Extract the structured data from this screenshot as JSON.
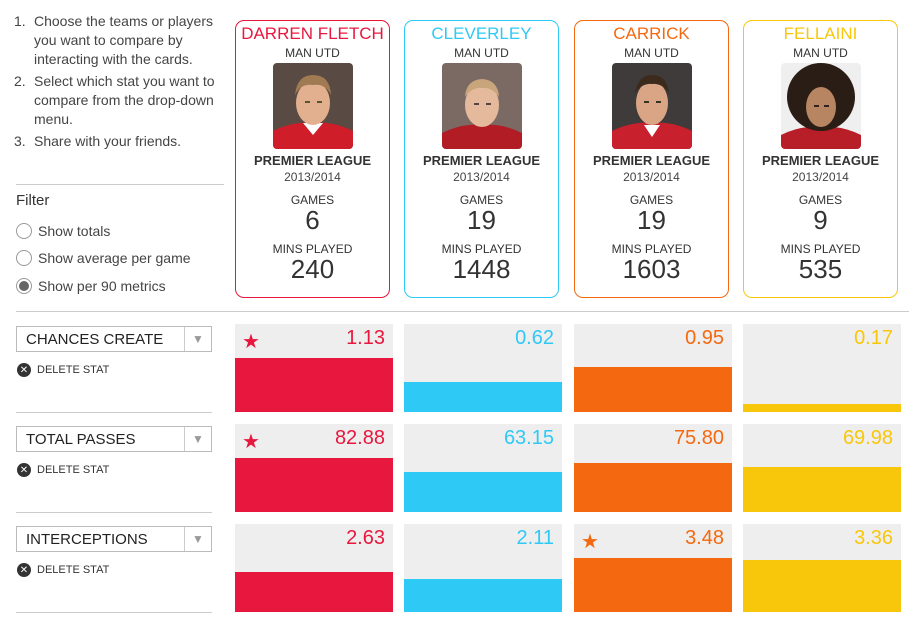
{
  "instructions": [
    {
      "num": "1.",
      "text": "Choose the teams or players you want to compare by interacting with the cards."
    },
    {
      "num": "2.",
      "text": "Select which stat you want to compare from the drop-down menu."
    },
    {
      "num": "3.",
      "text": "Share with your friends."
    }
  ],
  "filter": {
    "title": "Filter",
    "options": [
      {
        "label": "Show totals",
        "selected": false
      },
      {
        "label": "Show average per game",
        "selected": false
      },
      {
        "label": "Show per 90 metrics",
        "selected": true
      }
    ]
  },
  "players": [
    {
      "name": "DARREN FLETCH",
      "team": "MAN UTD",
      "league": "PREMIER LEAGUE",
      "season": "2013/2014",
      "games_label": "GAMES",
      "games": "6",
      "mins_label": "MINS PLAYED",
      "mins": "240",
      "color": "#e8173e",
      "photo": "player-photo-fletcher"
    },
    {
      "name": "CLEVERLEY",
      "team": "MAN UTD",
      "league": "PREMIER LEAGUE",
      "season": "2013/2014",
      "games_label": "GAMES",
      "games": "19",
      "mins_label": "MINS PLAYED",
      "mins": "1448",
      "color": "#2ec9f5",
      "photo": "player-photo-cleverley"
    },
    {
      "name": "CARRICK",
      "team": "MAN UTD",
      "league": "PREMIER LEAGUE",
      "season": "2013/2014",
      "games_label": "GAMES",
      "games": "19",
      "mins_label": "MINS PLAYED",
      "mins": "1603",
      "color": "#f4690f",
      "photo": "player-photo-carrick"
    },
    {
      "name": "FELLAINI",
      "team": "MAN UTD",
      "league": "PREMIER LEAGUE",
      "season": "2013/2014",
      "games_label": "GAMES",
      "games": "9",
      "mins_label": "MINS PLAYED",
      "mins": "535",
      "color": "#f8c70c",
      "photo": "player-photo-fellaini"
    }
  ],
  "stats": [
    {
      "name": "CHANCES CREATE",
      "delete_label": "DELETE STAT",
      "values": [
        "1.13",
        "0.62",
        "0.95",
        "0.17"
      ],
      "bar_fraction": [
        0.61,
        0.34,
        0.51,
        0.09
      ],
      "star_index": 0
    },
    {
      "name": "TOTAL PASSES",
      "delete_label": "DELETE STAT",
      "values": [
        "82.88",
        "63.15",
        "75.80",
        "69.98"
      ],
      "bar_fraction": [
        0.61,
        0.46,
        0.56,
        0.51
      ],
      "star_index": 0
    },
    {
      "name": "INTERCEPTIONS",
      "delete_label": "DELETE STAT",
      "values": [
        "2.63",
        "2.11",
        "3.48",
        "3.36"
      ],
      "bar_fraction": [
        0.46,
        0.37,
        0.61,
        0.59
      ],
      "star_index": 2
    }
  ],
  "icons": {
    "star": "star-icon",
    "delete": "close-circle-icon",
    "dropdown": "chevron-down-icon"
  }
}
